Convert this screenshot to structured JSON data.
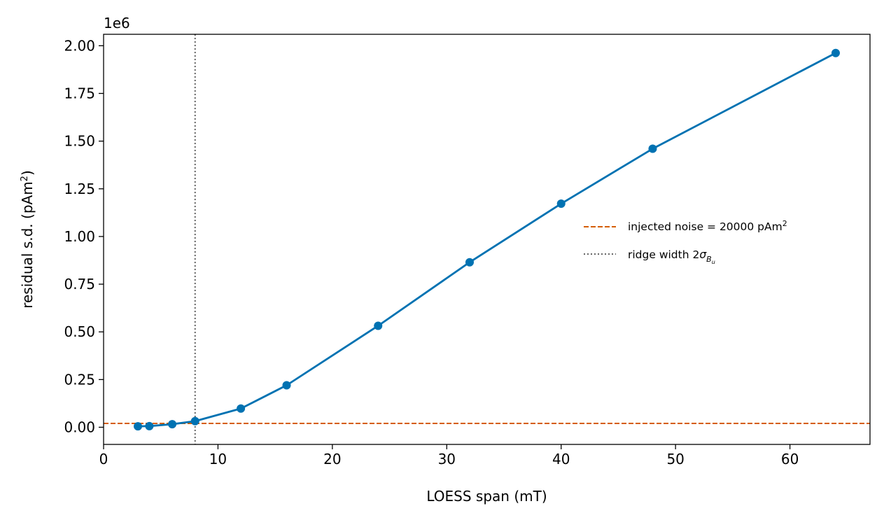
{
  "chart_data": {
    "type": "line",
    "title": "",
    "xlabel": "LOESS span (mT)",
    "ylabel": "residual s.d. (pAm²)",
    "xlim": [
      0,
      67
    ],
    "ylim": [
      -90000,
      2060000
    ],
    "y_offset_text": "1e6",
    "x_ticks": [
      0,
      10,
      20,
      30,
      40,
      50,
      60
    ],
    "x_tick_labels": [
      "0",
      "10",
      "20",
      "30",
      "40",
      "50",
      "60"
    ],
    "y_ticks": [
      0,
      250000,
      500000,
      750000,
      1000000,
      1250000,
      1500000,
      1750000,
      2000000
    ],
    "y_tick_labels": [
      "0.00",
      "0.25",
      "0.50",
      "0.75",
      "1.00",
      "1.25",
      "1.50",
      "1.75",
      "2.00"
    ],
    "grid": false,
    "legend_position": "center-right",
    "series": [
      {
        "color": "#0072b2",
        "x": [
          3,
          4,
          6,
          8,
          12,
          16,
          24,
          32,
          40,
          48,
          64
        ],
        "y": [
          5000,
          6000,
          16000,
          32000,
          98000,
          220000,
          532000,
          865000,
          1172000,
          1460000,
          1962000
        ]
      }
    ],
    "reference_lines": [
      {
        "orientation": "horizontal",
        "value": 20000,
        "style": "dashed",
        "color": "#d55e00",
        "label": "injected noise = 20000 pAm²"
      },
      {
        "orientation": "vertical",
        "value": 8,
        "style": "dotted",
        "color": "#666666",
        "label": "ridge width 2σ_{B_u}"
      }
    ]
  }
}
